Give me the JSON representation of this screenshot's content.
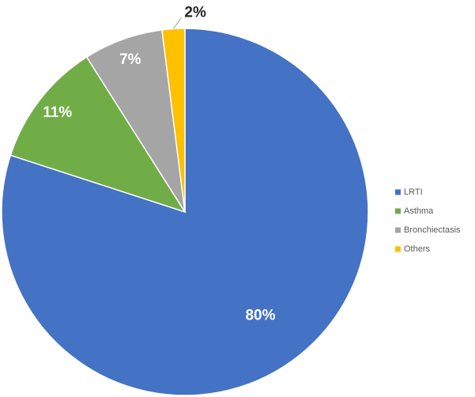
{
  "chart_data": {
    "type": "pie",
    "categories": [
      "LRTI",
      "Asthma",
      "Bronchiectasis",
      "Others"
    ],
    "values": [
      80,
      11,
      7,
      2
    ],
    "value_labels": [
      "80%",
      "11%",
      "7%",
      "2%"
    ],
    "colors": [
      "#4472c4",
      "#70ad47",
      "#a5a5a5",
      "#ffc000"
    ],
    "legend": "right"
  }
}
